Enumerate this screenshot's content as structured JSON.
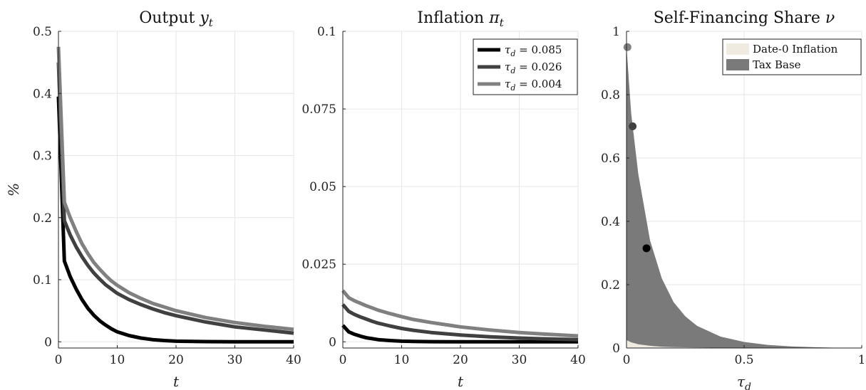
{
  "chart_data": [
    {
      "type": "line",
      "title": "Output y_t",
      "xlabel": "t",
      "ylabel": "%",
      "xlim": [
        0,
        40
      ],
      "ylim": [
        -0.01,
        0.5
      ],
      "xticks": [
        "0",
        "10",
        "20",
        "30",
        "40"
      ],
      "yticks": [
        "0",
        "0.1",
        "0.2",
        "0.3",
        "0.4",
        "0.5"
      ],
      "grid": true,
      "series": [
        {
          "label": "τd = 0.085",
          "color": "#000000",
          "x": [
            0,
            1,
            2,
            3,
            4,
            5,
            6,
            7,
            8,
            9,
            10,
            12,
            14,
            16,
            18,
            20,
            25,
            30,
            35,
            40
          ],
          "y": [
            0.395,
            0.13,
            0.105,
            0.085,
            0.068,
            0.054,
            0.043,
            0.034,
            0.027,
            0.021,
            0.016,
            0.01,
            0.006,
            0.0035,
            0.002,
            0.001,
            0.0003,
            0.0001,
            0,
            0
          ]
        },
        {
          "label": "τd = 0.026",
          "color": "#404040",
          "x": [
            0,
            1,
            2,
            3,
            4,
            5,
            6,
            7,
            8,
            9,
            10,
            12,
            14,
            16,
            18,
            20,
            25,
            30,
            35,
            40
          ],
          "y": [
            0.45,
            0.195,
            0.172,
            0.153,
            0.137,
            0.123,
            0.111,
            0.101,
            0.092,
            0.085,
            0.078,
            0.068,
            0.06,
            0.053,
            0.047,
            0.042,
            0.032,
            0.024,
            0.019,
            0.014
          ]
        },
        {
          "label": "τd = 0.004",
          "color": "#808080",
          "x": [
            0,
            1,
            2,
            3,
            4,
            5,
            6,
            7,
            8,
            9,
            10,
            12,
            14,
            16,
            18,
            20,
            25,
            30,
            35,
            40
          ],
          "y": [
            0.475,
            0.225,
            0.2,
            0.178,
            0.158,
            0.142,
            0.128,
            0.117,
            0.107,
            0.098,
            0.091,
            0.079,
            0.07,
            0.062,
            0.056,
            0.05,
            0.039,
            0.031,
            0.025,
            0.02
          ]
        }
      ]
    },
    {
      "type": "line",
      "title": "Inflation π_t",
      "xlabel": "t",
      "xlim": [
        0,
        40
      ],
      "ylim": [
        -0.002,
        0.1
      ],
      "xticks": [
        "0",
        "10",
        "20",
        "30",
        "40"
      ],
      "yticks": [
        "0",
        "0.025",
        "0.05",
        "0.075",
        "0.1"
      ],
      "grid": true,
      "legend": "top-right",
      "series": [
        {
          "label": "τd = 0.085",
          "color": "#000000",
          "x": [
            0,
            1,
            2,
            3,
            4,
            5,
            6,
            8,
            10,
            12,
            15,
            20,
            25,
            30,
            35,
            40
          ],
          "y": [
            0.0053,
            0.0032,
            0.0024,
            0.0018,
            0.0013,
            0.001,
            0.0007,
            0.0004,
            0.0002,
            0.0001,
            5e-05,
            0,
            0,
            0,
            0,
            0
          ]
        },
        {
          "label": "τd = 0.026",
          "color": "#404040",
          "x": [
            0,
            1,
            2,
            3,
            4,
            5,
            6,
            8,
            10,
            12,
            15,
            20,
            25,
            30,
            35,
            40
          ],
          "y": [
            0.012,
            0.0098,
            0.0088,
            0.008,
            0.0073,
            0.0066,
            0.006,
            0.0051,
            0.0043,
            0.0037,
            0.003,
            0.0022,
            0.0016,
            0.0012,
            0.0009,
            0.0007
          ]
        },
        {
          "label": "τd = 0.004",
          "color": "#808080",
          "x": [
            0,
            1,
            2,
            3,
            4,
            5,
            6,
            8,
            10,
            12,
            15,
            20,
            25,
            30,
            35,
            40
          ],
          "y": [
            0.0165,
            0.0142,
            0.0132,
            0.0124,
            0.0116,
            0.0109,
            0.0102,
            0.0091,
            0.0081,
            0.0072,
            0.0062,
            0.0048,
            0.0038,
            0.003,
            0.0024,
            0.0019
          ]
        }
      ]
    },
    {
      "type": "area",
      "title": "Self-Financing Share ν",
      "xlabel": "τ_d",
      "xlim": [
        0,
        1
      ],
      "ylim": [
        0,
        1
      ],
      "xticks": [
        "0",
        "0.5",
        "1"
      ],
      "yticks": [
        "0",
        "0.2",
        "0.4",
        "0.6",
        "0.8",
        "1"
      ],
      "grid": true,
      "legend": "top-right",
      "areas": [
        {
          "label": "Date-0 Inflation",
          "color": "#efebe0",
          "x": [
            0,
            0.02,
            0.05,
            0.1,
            0.15,
            0.2,
            0.3,
            0.4,
            0.5,
            0.6,
            0.7,
            0.8,
            0.9,
            1.0
          ],
          "y": [
            0.025,
            0.018,
            0.012,
            0.007,
            0.004,
            0.003,
            0.0015,
            0.001,
            0.0005,
            0.0003,
            0.0002,
            0.0001,
            0,
            0
          ]
        },
        {
          "label": "Tax Base",
          "color": "#7a7a7a",
          "x": [
            0,
            0.02,
            0.05,
            0.1,
            0.15,
            0.2,
            0.25,
            0.3,
            0.4,
            0.5,
            0.6,
            0.7,
            0.8,
            0.9,
            1.0
          ],
          "y": [
            0.95,
            0.74,
            0.55,
            0.34,
            0.22,
            0.145,
            0.1,
            0.07,
            0.036,
            0.019,
            0.01,
            0.005,
            0.0025,
            0.001,
            0
          ]
        }
      ],
      "points": [
        {
          "x": 0.004,
          "y": 0.95,
          "color": "#808080"
        },
        {
          "x": 0.026,
          "y": 0.7,
          "color": "#404040"
        },
        {
          "x": 0.085,
          "y": 0.315,
          "color": "#000000"
        }
      ]
    }
  ]
}
